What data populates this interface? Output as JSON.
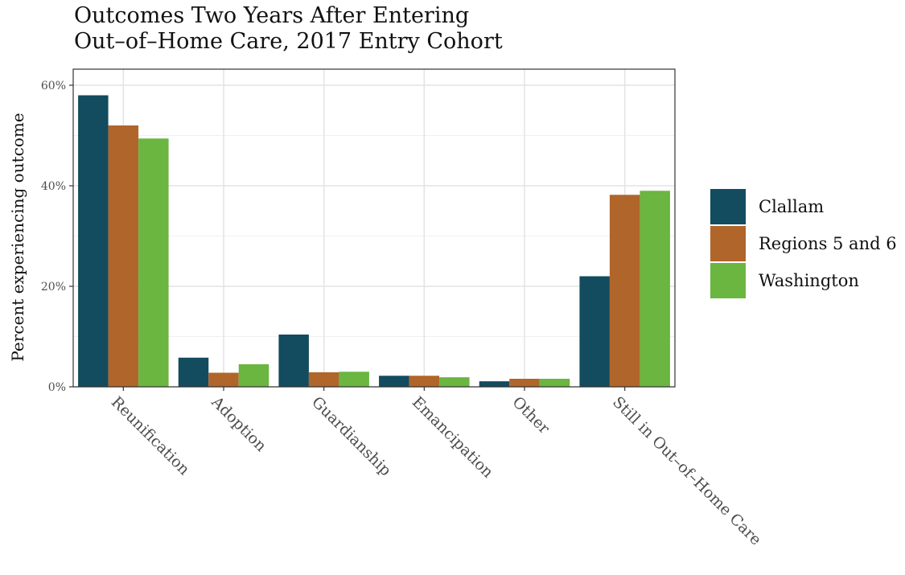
{
  "title_line1": "Outcomes Two Years After Entering",
  "title_line2": "Out–of–Home Care, 2017 Entry Cohort",
  "chart_data": {
    "type": "bar",
    "title": "Outcomes Two Years After Entering Out–of–Home Care, 2017 Entry Cohort",
    "xlabel": "",
    "ylabel": "Percent experiencing outcome",
    "categories": [
      "Reunification",
      "Adoption",
      "Guardianship",
      "Emancipation",
      "Other",
      "Still in Out–of–Home Care"
    ],
    "series": [
      {
        "name": "Clallam",
        "color": "#134b5f",
        "values": [
          58.0,
          5.8,
          10.4,
          2.2,
          1.1,
          22.0
        ]
      },
      {
        "name": "Regions 5 and 6",
        "color": "#b0652b",
        "values": [
          52.0,
          2.8,
          2.9,
          2.2,
          1.6,
          38.2
        ]
      },
      {
        "name": "Washington",
        "color": "#6bb541",
        "values": [
          49.4,
          4.5,
          3.0,
          1.9,
          1.6,
          39.0
        ]
      }
    ],
    "ylim": [
      0,
      60
    ],
    "yticks": [
      0,
      20,
      40,
      60
    ],
    "ytick_labels": [
      "0%",
      "20%",
      "40%",
      "60%"
    ],
    "grid": true,
    "legend_position": "right"
  }
}
